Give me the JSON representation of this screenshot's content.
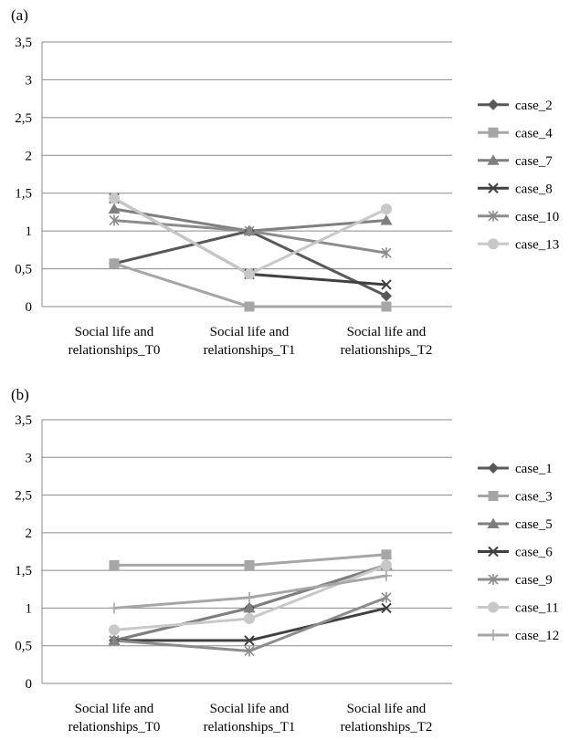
{
  "chart_data": [
    {
      "type": "line",
      "panel_label": "(a)",
      "categories": [
        "Social  life and relationships_T0",
        "Social  life and relationships_T1",
        "Social  life and relationships_T2"
      ],
      "yticks": [
        "0",
        "0,5",
        "1",
        "1,5",
        "2",
        "2,5",
        "3",
        "3,5"
      ],
      "ylim": [
        0,
        3.5
      ],
      "grid": true,
      "legend_position": "right",
      "series": [
        {
          "name": "case_2",
          "values": [
            0.57,
            1.0,
            0.14
          ],
          "color": "#595959",
          "marker": "diamond"
        },
        {
          "name": "case_4",
          "values": [
            0.57,
            0.0,
            0.0
          ],
          "color": "#a6a6a6",
          "marker": "square"
        },
        {
          "name": "case_7",
          "values": [
            1.29,
            1.0,
            1.14
          ],
          "color": "#7f7f7f",
          "marker": "triangle"
        },
        {
          "name": "case_8",
          "values": [
            1.43,
            0.43,
            0.29
          ],
          "color": "#404040",
          "marker": "x"
        },
        {
          "name": "case_10",
          "values": [
            1.14,
            1.0,
            0.71
          ],
          "color": "#8c8c8c",
          "marker": "star"
        },
        {
          "name": "case_13",
          "values": [
            1.43,
            0.43,
            1.29
          ],
          "color": "#c8c8c8",
          "marker": "circle"
        }
      ]
    },
    {
      "type": "line",
      "panel_label": "(b)",
      "categories": [
        "Social  life and relationships_T0",
        "Social  life and relationships_T1",
        "Social  life and relationships_T2"
      ],
      "yticks": [
        "0",
        "0,5",
        "1",
        "1,5",
        "2",
        "2,5",
        "3",
        "3,5"
      ],
      "ylim": [
        0,
        3.5
      ],
      "grid": true,
      "legend_position": "right",
      "series": [
        {
          "name": "case_1",
          "values": [
            0.57,
            1.0,
            1.57
          ],
          "color": "#595959",
          "marker": "diamond"
        },
        {
          "name": "case_3",
          "values": [
            1.57,
            1.57,
            1.71
          ],
          "color": "#a6a6a6",
          "marker": "square"
        },
        {
          "name": "case_5",
          "values": [
            0.57,
            1.0,
            1.57
          ],
          "color": "#7f7f7f",
          "marker": "triangle"
        },
        {
          "name": "case_6",
          "values": [
            0.57,
            0.57,
            1.0
          ],
          "color": "#404040",
          "marker": "x"
        },
        {
          "name": "case_9",
          "values": [
            0.57,
            0.43,
            1.14
          ],
          "color": "#8c8c8c",
          "marker": "star"
        },
        {
          "name": "case_11",
          "values": [
            0.71,
            0.86,
            1.57
          ],
          "color": "#c8c8c8",
          "marker": "circle"
        },
        {
          "name": "case_12",
          "values": [
            1.0,
            1.14,
            1.43
          ],
          "color": "#a6a6a6",
          "marker": "plus"
        }
      ]
    }
  ]
}
